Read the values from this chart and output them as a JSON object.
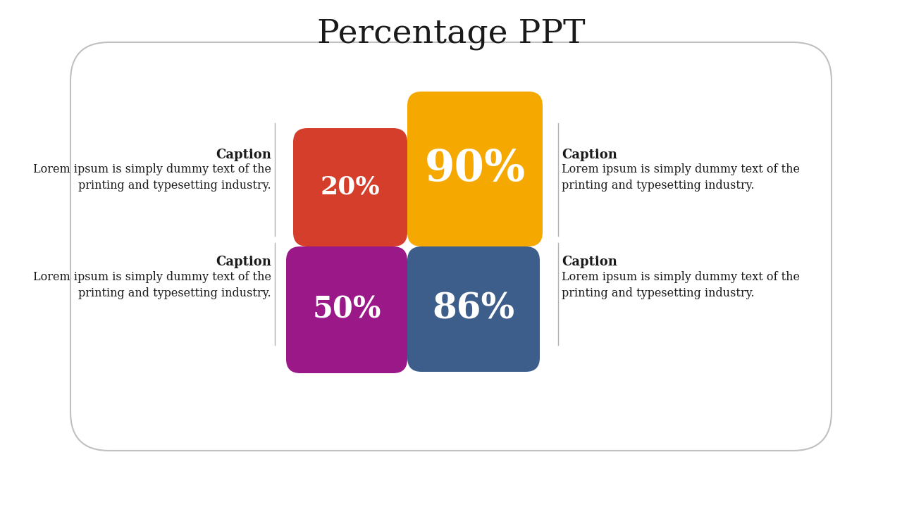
{
  "title": "Percentage PPT",
  "title_fontsize": 34,
  "title_font": "serif",
  "background_color": "#ffffff",
  "sections": [
    {
      "pct": "20%",
      "color": "#d43e2a",
      "corner": "top-left",
      "fontsize": 26
    },
    {
      "pct": "90%",
      "color": "#f5a800",
      "corner": "top-right",
      "fontsize": 44
    },
    {
      "pct": "50%",
      "color": "#9b1888",
      "corner": "bottom-left",
      "fontsize": 30
    },
    {
      "pct": "86%",
      "color": "#3d5d8a",
      "corner": "bottom-right",
      "fontsize": 36
    }
  ],
  "caption_body": "Lorem ipsum is simply dummy text of the\nprinting and typesetting industry.",
  "outer_box_color": "#c0c0c0",
  "outer_box_bg": "#ffffff",
  "caption_title_fontsize": 13,
  "caption_body_fontsize": 11.5,
  "line_color": "#b0b0b0"
}
